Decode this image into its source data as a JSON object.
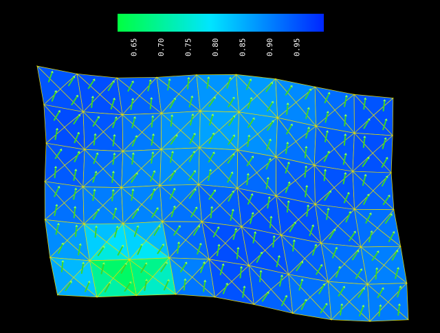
{
  "window": {
    "background": "#000000"
  },
  "colorbar": {
    "min": 0.62,
    "max": 1.0,
    "colors": {
      "low": "#00ff40",
      "mid": "#00e5ff",
      "high": "#0026ff"
    },
    "ticks": [
      "0.65",
      "0.70",
      "0.75",
      "0.80",
      "0.85",
      "0.90",
      "0.95"
    ],
    "tick_values": [
      0.65,
      0.7,
      0.75,
      0.8,
      0.85,
      0.9,
      0.95
    ]
  },
  "mesh": {
    "edge_color": "#e8e000",
    "arrow_color": "#39d62a",
    "low_region": {
      "value": 0.63,
      "description": ""
    }
  }
}
